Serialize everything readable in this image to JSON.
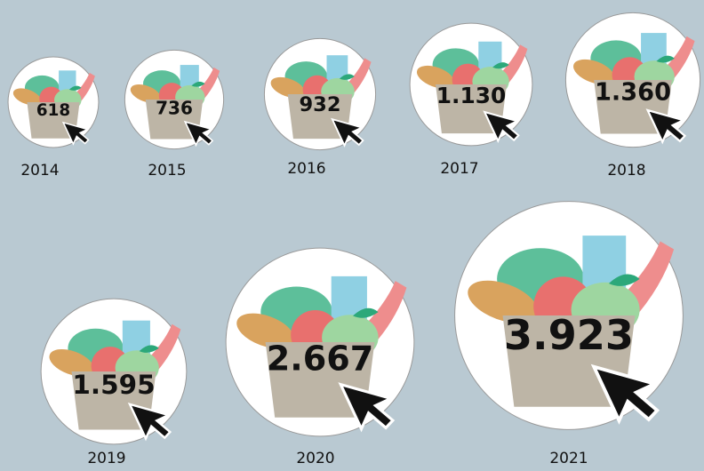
{
  "chart_data": {
    "type": "bubble",
    "categories": [
      "2014",
      "2015",
      "2016",
      "2017",
      "2018",
      "2019",
      "2020",
      "2021"
    ],
    "values": [
      618,
      736,
      932,
      1130,
      1360,
      1595,
      2667,
      3923
    ],
    "value_labels": [
      "618",
      "736",
      "932",
      "1.130",
      "1.360",
      "1.595",
      "2.667",
      "3.923"
    ],
    "color": "#ffffff"
  }
}
